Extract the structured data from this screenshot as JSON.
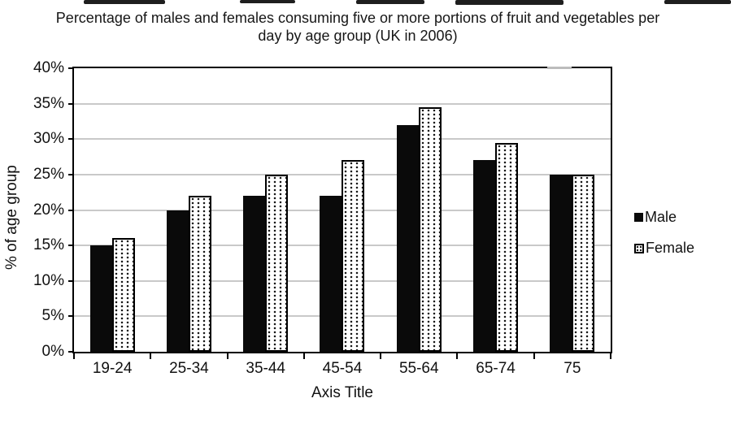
{
  "chart_data": {
    "type": "bar",
    "title": "Percentage of males and females consuming five or more portions of fruit and vegetables per day by age group (UK in 2006)",
    "categories": [
      "19-24",
      "25-34",
      "35-44",
      "45-54",
      "55-64",
      "65-74",
      "75"
    ],
    "series": [
      {
        "name": "Male",
        "pattern": "solid",
        "fill": "#0a0a0a",
        "values": [
          15,
          20,
          22,
          22,
          32,
          27,
          25
        ]
      },
      {
        "name": "Female",
        "pattern": "dotted",
        "fill": "#ffffff",
        "values": [
          16,
          22,
          25,
          27,
          34.5,
          29.5,
          25
        ]
      }
    ],
    "xlabel": "Axis Title",
    "ylabel": "% of age group",
    "ylim": [
      0,
      40
    ],
    "ytick_step": 5,
    "ytick_suffix": "%",
    "grid": true,
    "legend_position": "right",
    "colors": {
      "male_bar": "#0a0a0a",
      "female_bar_bg": "#ffffff",
      "gridline": "#c9c9c9",
      "axis": "#000000",
      "text": "#161616"
    }
  }
}
